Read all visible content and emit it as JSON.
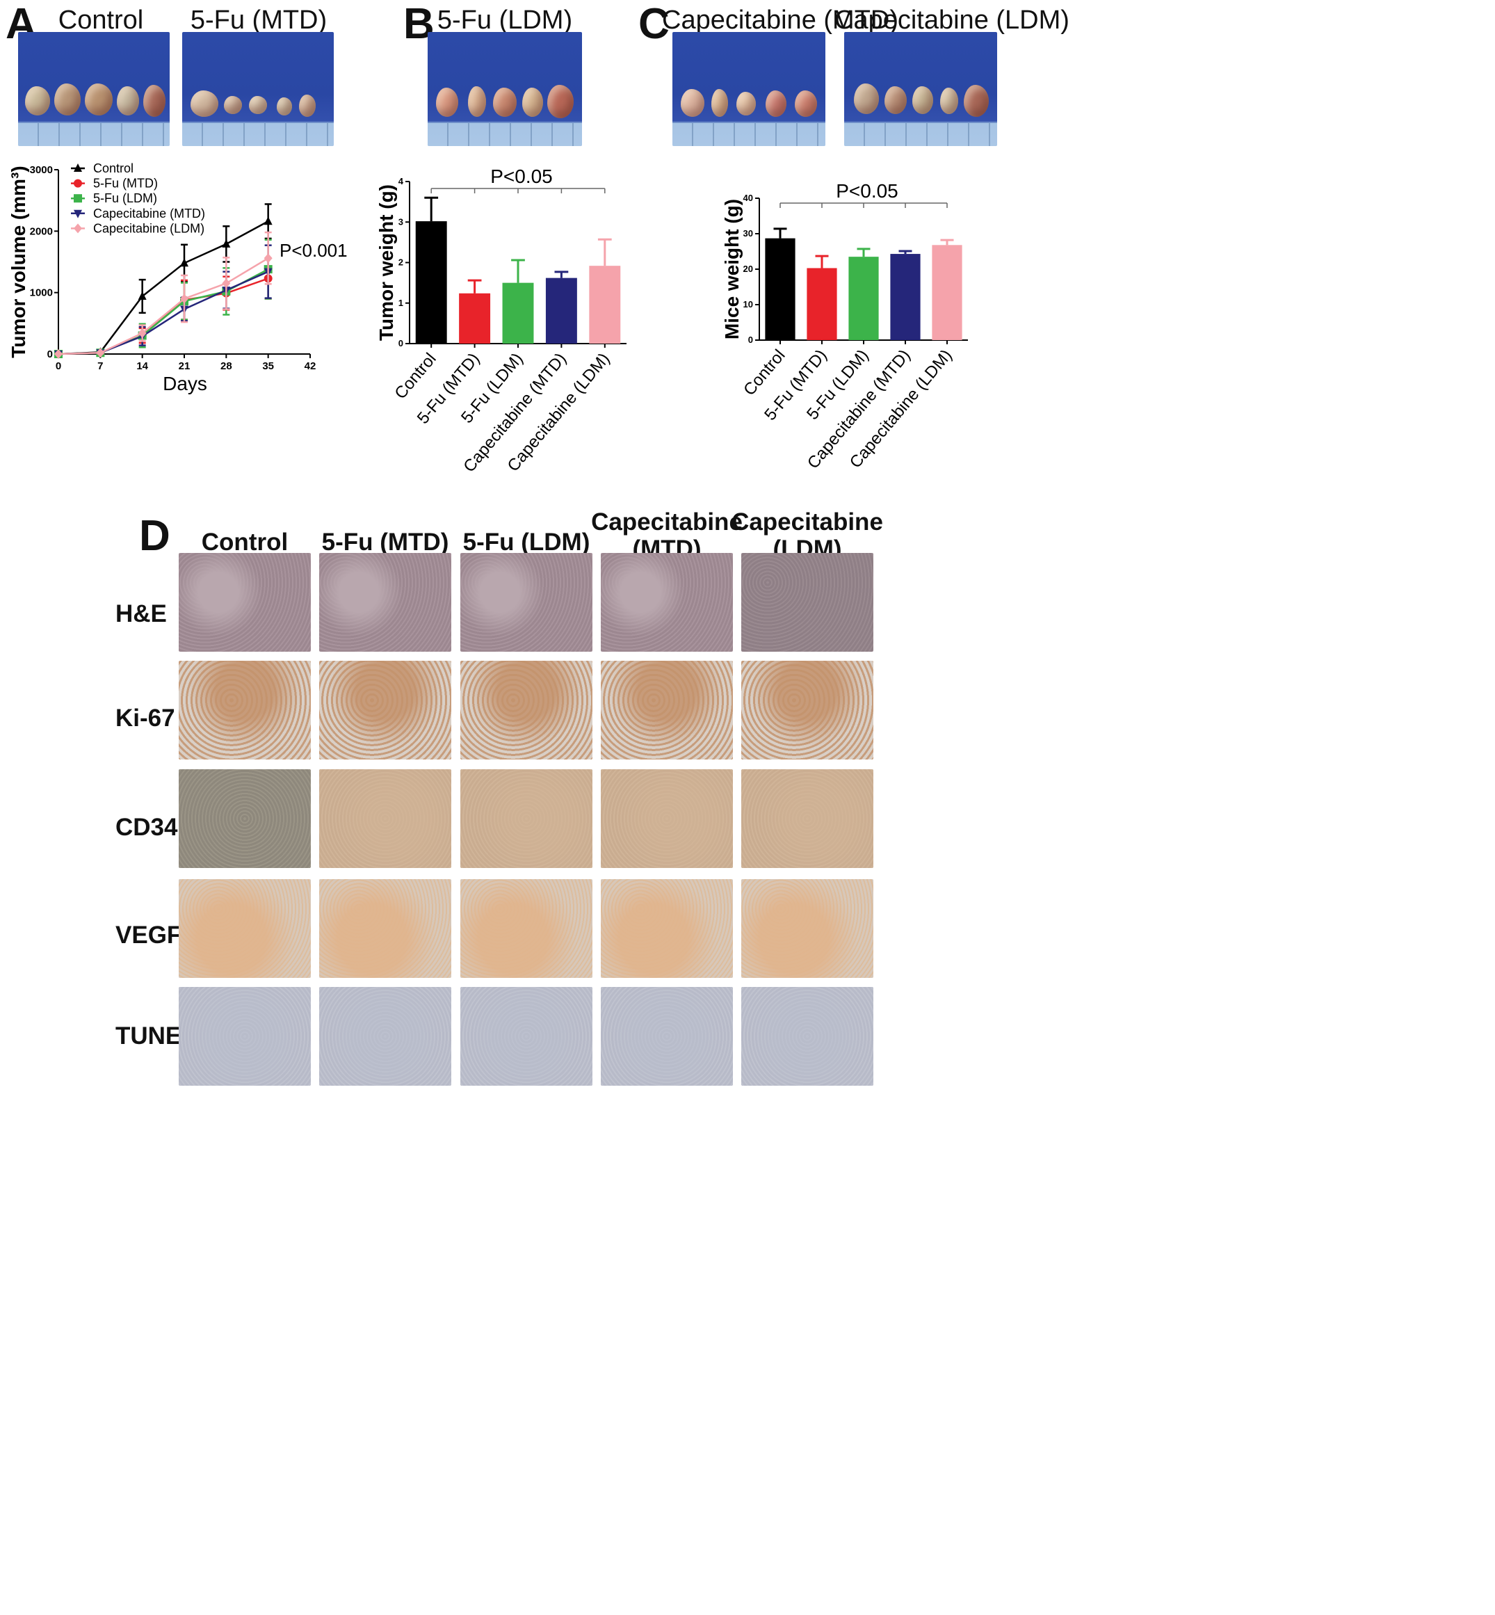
{
  "panels": {
    "a": {
      "letter": "A"
    },
    "b": {
      "letter": "B"
    },
    "c": {
      "letter": "C"
    },
    "d": {
      "letter": "D"
    }
  },
  "photos": {
    "control": "Control",
    "fu_mtd": "5-Fu (MTD)",
    "fu_ldm": "5-Fu (LDM)",
    "cap_mtd": "Capecitabine (MTD)",
    "cap_ldm": "Capecitabine (LDM)"
  },
  "colors": {
    "control": "#000000",
    "fu_mtd": "#e8232a",
    "fu_ldm": "#3cb34a",
    "cap_mtd": "#25267a",
    "cap_ldm": "#f5a3ab"
  },
  "chart_data": [
    {
      "type": "line",
      "ylabel": "Tumor volume (mm³)",
      "xlabel": "Days",
      "annotation": "P<0.001",
      "x": [
        0,
        7,
        14,
        21,
        28,
        35
      ],
      "x_ticks": [
        0,
        7,
        14,
        21,
        28,
        35,
        42
      ],
      "y_ticks": [
        0,
        1000,
        2000,
        3000
      ],
      "xlim": [
        0,
        42
      ],
      "ylim": [
        0,
        3000
      ],
      "legend_position": "top-left",
      "series": [
        {
          "name": "Control",
          "color": "#000000",
          "marker": "triangle-up",
          "values": [
            0,
            30,
            940,
            1480,
            1790,
            2160
          ],
          "errors": [
            0,
            15,
            270,
            300,
            290,
            280
          ]
        },
        {
          "name": "5-Fu (MTD)",
          "color": "#e8232a",
          "marker": "circle",
          "values": [
            0,
            20,
            300,
            880,
            990,
            1230
          ],
          "errors": [
            0,
            10,
            120,
            320,
            270,
            330
          ]
        },
        {
          "name": "5-Fu (LDM)",
          "color": "#3cb34a",
          "marker": "square",
          "values": [
            0,
            20,
            300,
            860,
            1020,
            1380
          ],
          "errors": [
            0,
            10,
            190,
            300,
            380,
            480
          ]
        },
        {
          "name": "Capecitabine (MTD)",
          "color": "#25267a",
          "marker": "triangle-down",
          "values": [
            0,
            20,
            290,
            730,
            1040,
            1340
          ],
          "errors": [
            0,
            10,
            150,
            190,
            300,
            430
          ]
        },
        {
          "name": "Capecitabine (LDM)",
          "color": "#f5a3ab",
          "marker": "diamond",
          "values": [
            0,
            20,
            340,
            900,
            1150,
            1560
          ],
          "errors": [
            0,
            10,
            130,
            380,
            420,
            420
          ]
        }
      ]
    },
    {
      "type": "bar",
      "ylabel": "Tumor weight (g)",
      "annotation": "P<0.05",
      "categories": [
        "Control",
        "5-Fu (MTD)",
        "5-Fu (LDM)",
        "Capecitabine (MTD)",
        "Capecitabine (LDM)"
      ],
      "values": [
        3.02,
        1.24,
        1.5,
        1.62,
        1.92
      ],
      "errors": [
        0.58,
        0.32,
        0.56,
        0.15,
        0.65
      ],
      "colors": [
        "#000000",
        "#e8232a",
        "#3cb34a",
        "#25267a",
        "#f5a3ab"
      ],
      "y_ticks": [
        0,
        1,
        2,
        3,
        4
      ],
      "ylim": [
        0,
        4
      ]
    },
    {
      "type": "bar",
      "ylabel": "Mice weight (g)",
      "annotation": "P<0.05",
      "categories": [
        "Control",
        "5-Fu (MTD)",
        "5-Fu (LDM)",
        "Capecitabine (MTD)",
        "Capecitabine (LDM)"
      ],
      "values": [
        28.7,
        20.3,
        23.5,
        24.3,
        26.8
      ],
      "errors": [
        2.7,
        3.4,
        2.2,
        0.8,
        1.4
      ],
      "colors": [
        "#000000",
        "#e8232a",
        "#3cb34a",
        "#25267a",
        "#f5a3ab"
      ],
      "y_ticks": [
        0,
        10,
        20,
        30,
        40
      ],
      "ylim": [
        0,
        40
      ]
    }
  ],
  "histology": {
    "columns": [
      "Control",
      "5-Fu (MTD)",
      "5-Fu (LDM)",
      "Capecitabine\n(MTD)",
      "Capecitabine\n(LDM)"
    ],
    "rows": [
      "H&E",
      "Ki-67",
      "CD34",
      "VEGF",
      "TUNEL"
    ]
  }
}
